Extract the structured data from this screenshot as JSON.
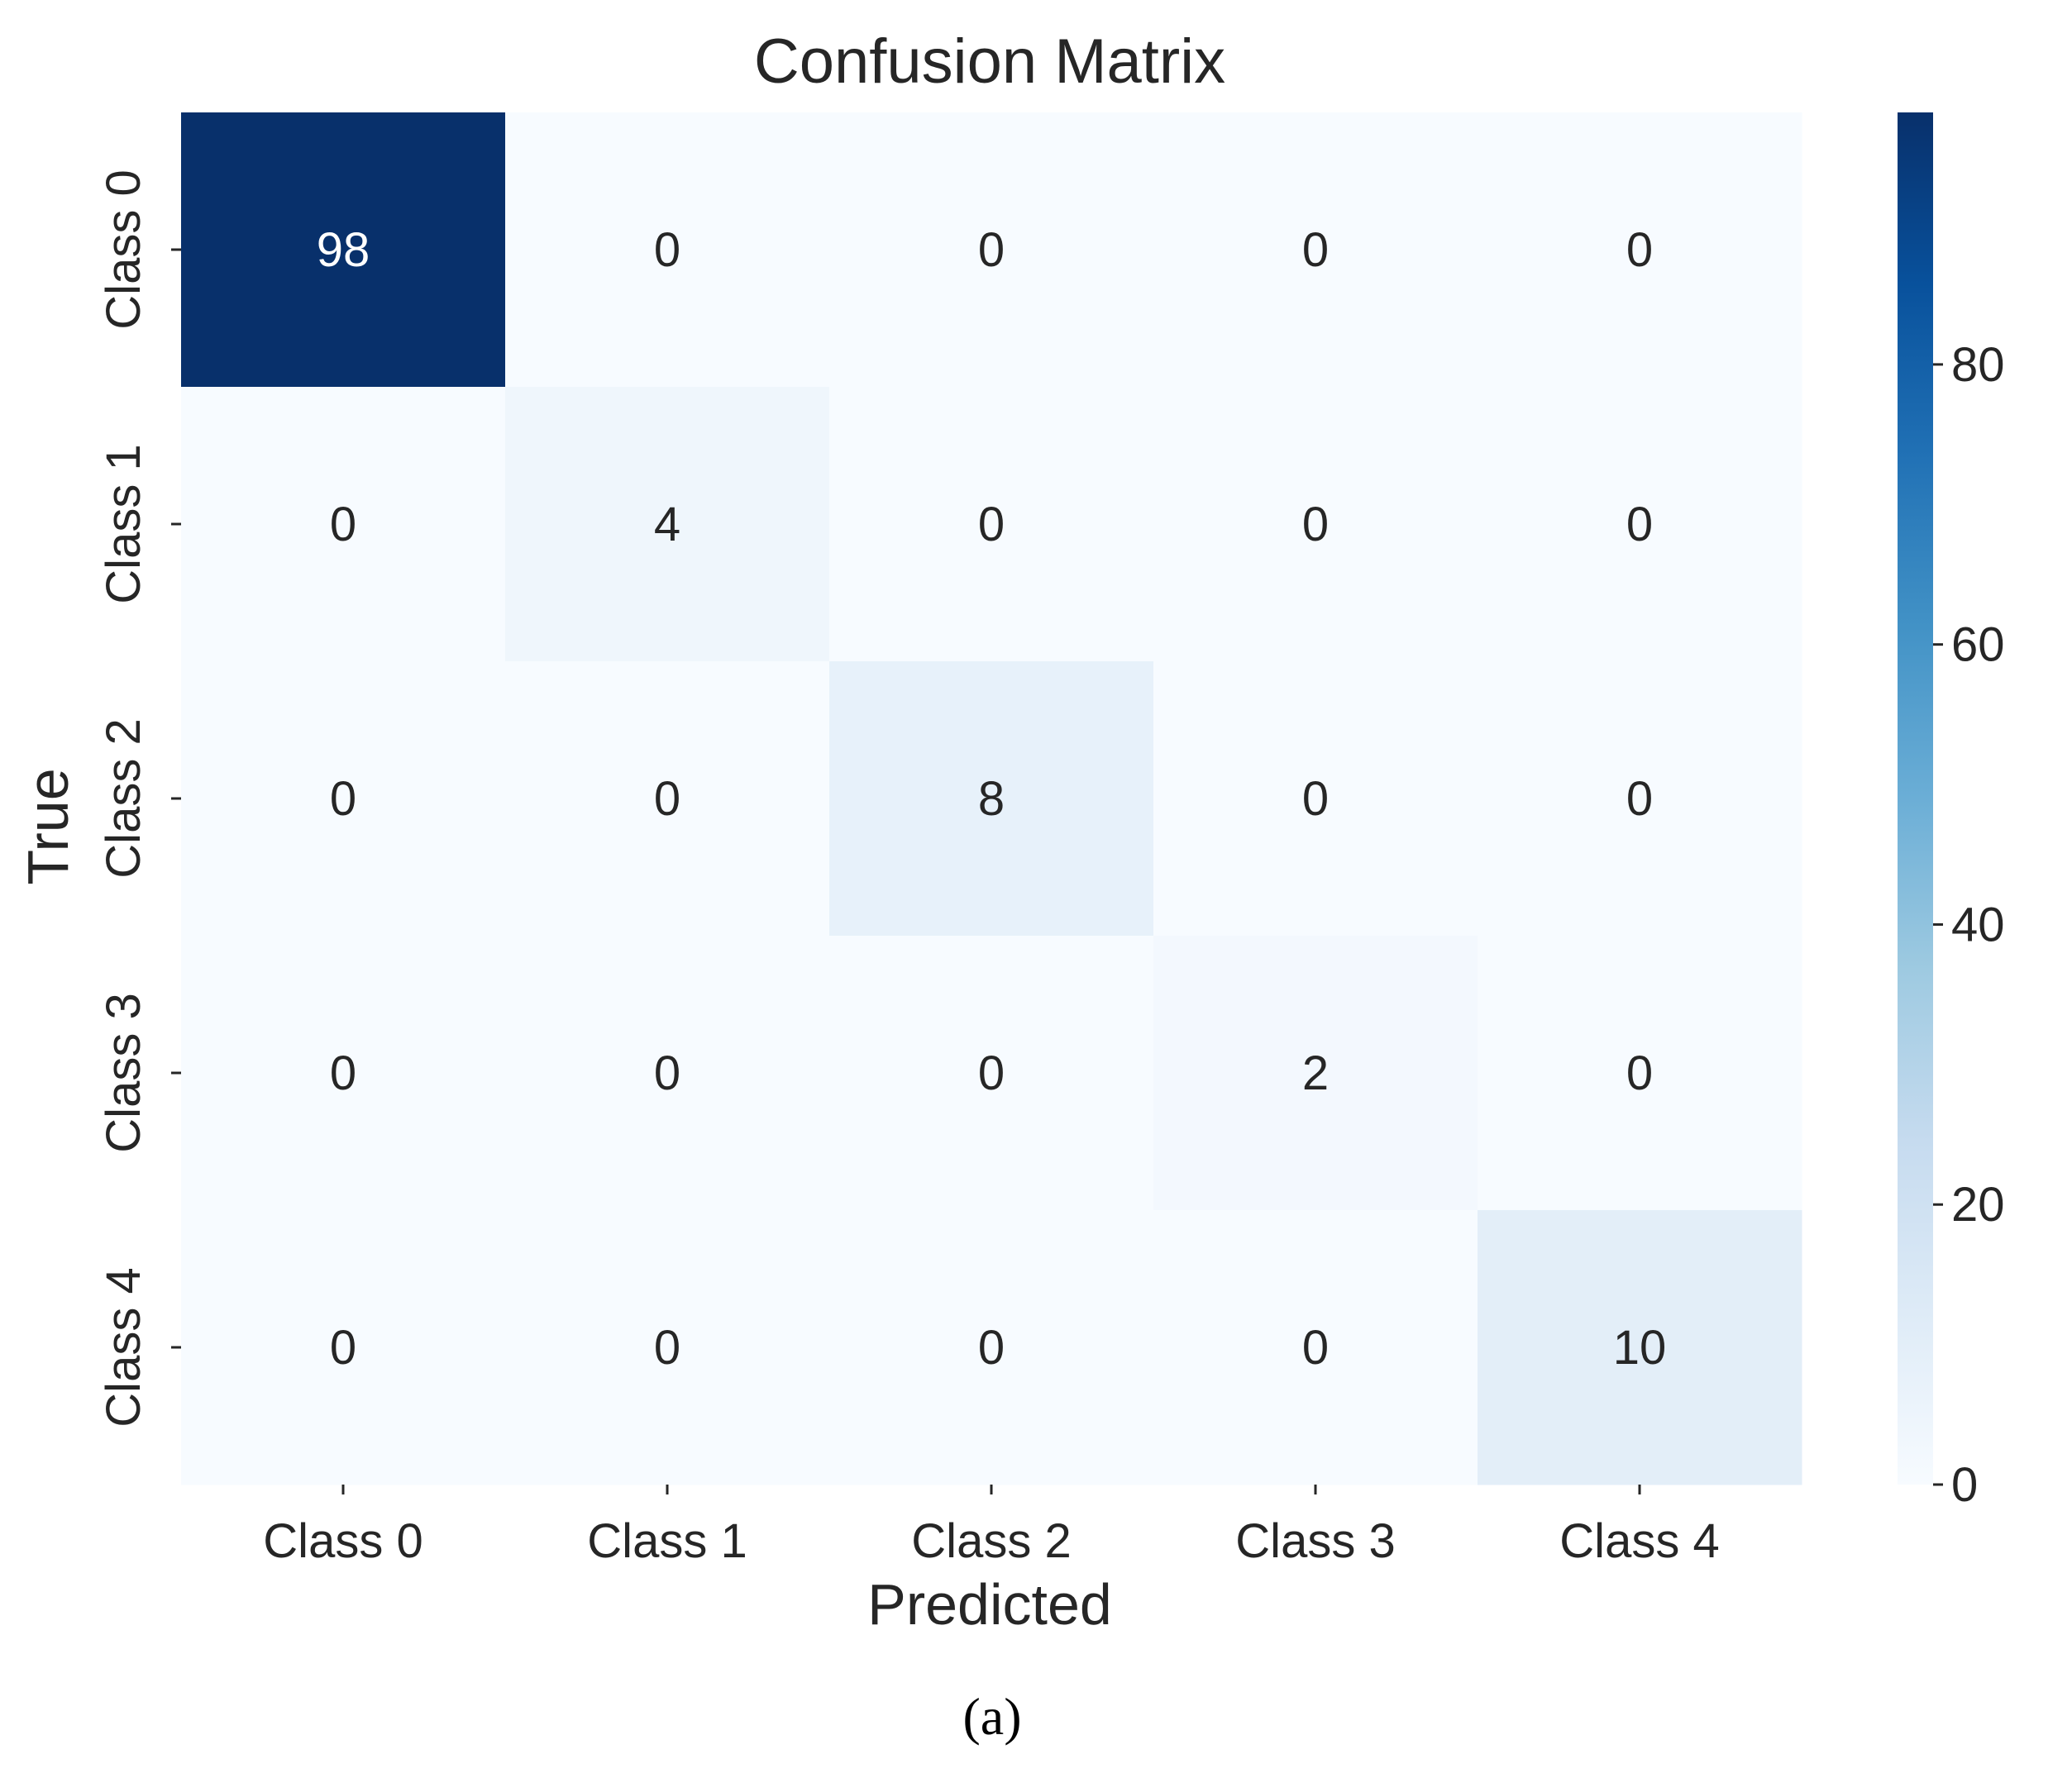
{
  "chart_data": {
    "type": "heatmap",
    "title": "Confusion Matrix",
    "xlabel": "Predicted",
    "ylabel": "True",
    "x_categories": [
      "Class 0",
      "Class 1",
      "Class 2",
      "Class 3",
      "Class 4"
    ],
    "y_categories": [
      "Class 0",
      "Class 1",
      "Class 2",
      "Class 3",
      "Class 4"
    ],
    "matrix": [
      [
        98,
        0,
        0,
        0,
        0
      ],
      [
        0,
        4,
        0,
        0,
        0
      ],
      [
        0,
        0,
        8,
        0,
        0
      ],
      [
        0,
        0,
        0,
        2,
        0
      ],
      [
        0,
        0,
        0,
        0,
        10
      ]
    ],
    "colormap": "Blues",
    "colorbar": {
      "min": 0,
      "max": 98,
      "ticks": [
        0,
        20,
        40,
        60,
        80
      ]
    },
    "annotations": "cell values"
  },
  "panel_label": "(a)",
  "colors": {
    "text_dark": "#262626",
    "text_light": "#ffffff",
    "blues_stops": [
      "#f7fbff",
      "#deebf7",
      "#c6dbef",
      "#9ecae1",
      "#6baed6",
      "#4292c6",
      "#2171b5",
      "#08519c",
      "#08306b"
    ]
  }
}
